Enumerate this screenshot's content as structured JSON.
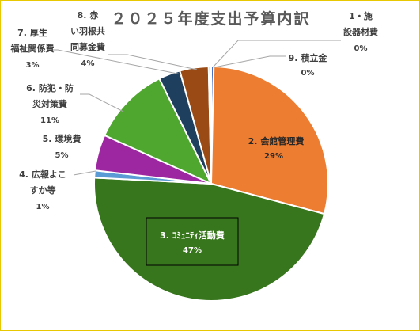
{
  "chart_data": {
    "type": "pie",
    "title": "２０２５年度支出予算内訳",
    "slices": [
      {
        "label": "1・施設器材費",
        "value": 0,
        "pct_label": "0%",
        "color": "#4472c4"
      },
      {
        "label": "2. 会館管理費",
        "value": 29,
        "pct_label": "29%",
        "color": "#ed7d31"
      },
      {
        "label": "3. ｺﾐｭﾆﾃｨ活動費",
        "value": 47,
        "pct_label": "47%",
        "color": "#38761d"
      },
      {
        "label": "4. 広報よこすか等",
        "value": 1,
        "pct_label": "1%",
        "color": "#5b9bd5"
      },
      {
        "label": "5. 環境費",
        "value": 5,
        "pct_label": "5%",
        "color": "#9c27a0"
      },
      {
        "label": "6. 防犯・防災対策費",
        "value": 11,
        "pct_label": "11%",
        "color": "#4fa72f"
      },
      {
        "label": "7. 厚生福祉関係費",
        "value": 3,
        "pct_label": "3%",
        "color": "#1f3f5f"
      },
      {
        "label": "8. 赤い羽根共同募金費",
        "value": 4,
        "pct_label": "4%",
        "color": "#9a4a14"
      },
      {
        "label": "9. 積立金",
        "value": 0,
        "pct_label": "0%",
        "color": "#7f7f7f"
      }
    ]
  },
  "labels": {
    "s1": {
      "l1": "1・施",
      "l2": "設器材費",
      "l3": "0%"
    },
    "s2": {
      "l1": "2. 会館管理費",
      "l2": "29%"
    },
    "s3": {
      "l1": "3. ｺﾐｭﾆﾃｨ活動費",
      "l2": "47%"
    },
    "s4": {
      "l1": "4. 広報よこ",
      "l2": "すか等",
      "l3": "1%"
    },
    "s5": {
      "l1": "5. 環境費",
      "l2": "5%"
    },
    "s6": {
      "l1": "6. 防犯・防",
      "l2": "災対策費",
      "l3": "11%"
    },
    "s7": {
      "l1": "7. 厚生",
      "l2": "福祉関係費",
      "l3": "3%"
    },
    "s8": {
      "l1": "8. 赤",
      "l2": "い羽根共",
      "l3": "同募金費",
      "l4": "4%"
    },
    "s9": {
      "l1": "9. 積立金",
      "l2": "0%"
    }
  }
}
